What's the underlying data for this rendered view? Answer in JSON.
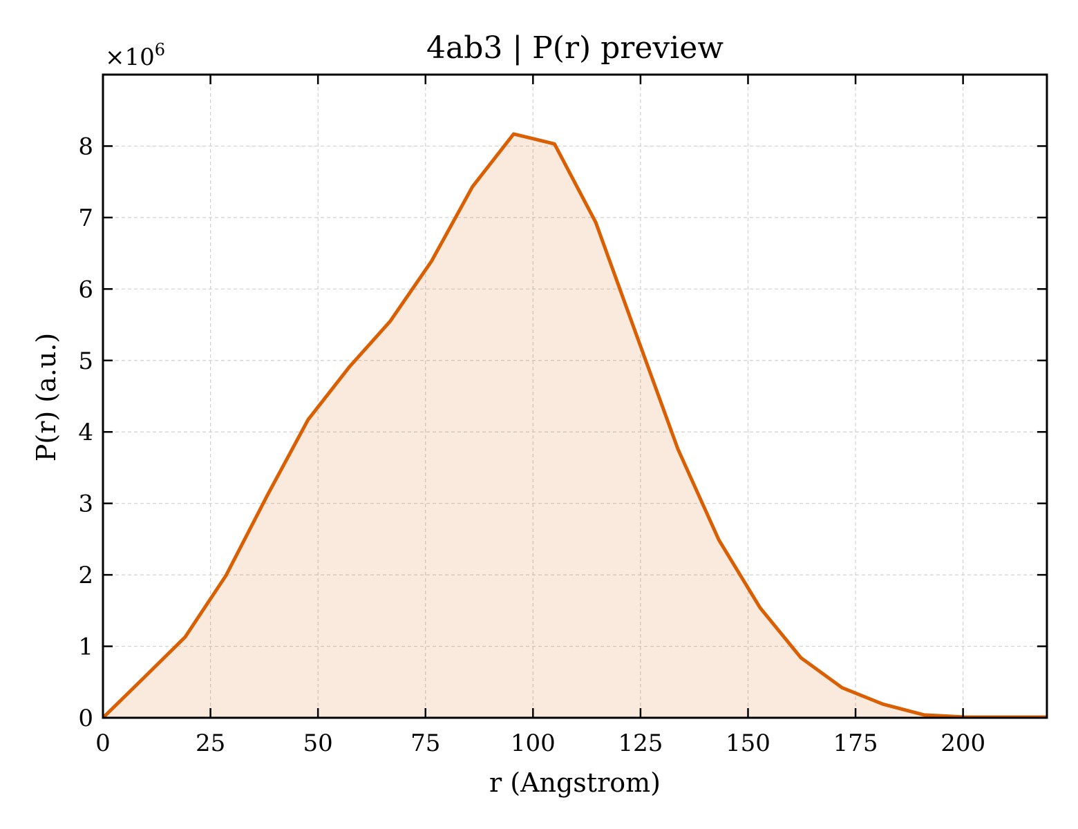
{
  "chart_data": {
    "type": "area",
    "title": "4ab3 | P(r) preview",
    "xlabel": "r (Angstrom)",
    "ylabel": "P(r) (a.u.)",
    "y_multiplier": {
      "base": "×10",
      "exponent": "6"
    },
    "xlim": [
      0,
      219.5
    ],
    "ylim": [
      0,
      9.0
    ],
    "xticks": [
      0,
      25,
      50,
      75,
      100,
      125,
      150,
      175,
      200
    ],
    "yticks": [
      0,
      1,
      2,
      3,
      4,
      5,
      6,
      7,
      8
    ],
    "grid": true,
    "color": "#d95f02",
    "fill_color": "#d95f02",
    "fill_opacity": 0.13,
    "series": [
      {
        "x": [
          0,
          9.5,
          19.1,
          28.6,
          38.2,
          47.7,
          57.3,
          66.8,
          76.4,
          85.9,
          95.5,
          105.0,
          114.6,
          124.1,
          133.7,
          143.2,
          152.8,
          162.3,
          171.9,
          181.4,
          191.0,
          200.5,
          210.0,
          219.5
        ],
        "y": [
          0,
          0.56,
          1.13,
          1.99,
          3.11,
          4.17,
          4.91,
          5.55,
          6.39,
          7.43,
          8.17,
          8.03,
          6.93,
          5.35,
          3.76,
          2.49,
          1.54,
          0.84,
          0.42,
          0.19,
          0.04,
          0.01,
          0.01,
          0.01
        ]
      }
    ]
  }
}
